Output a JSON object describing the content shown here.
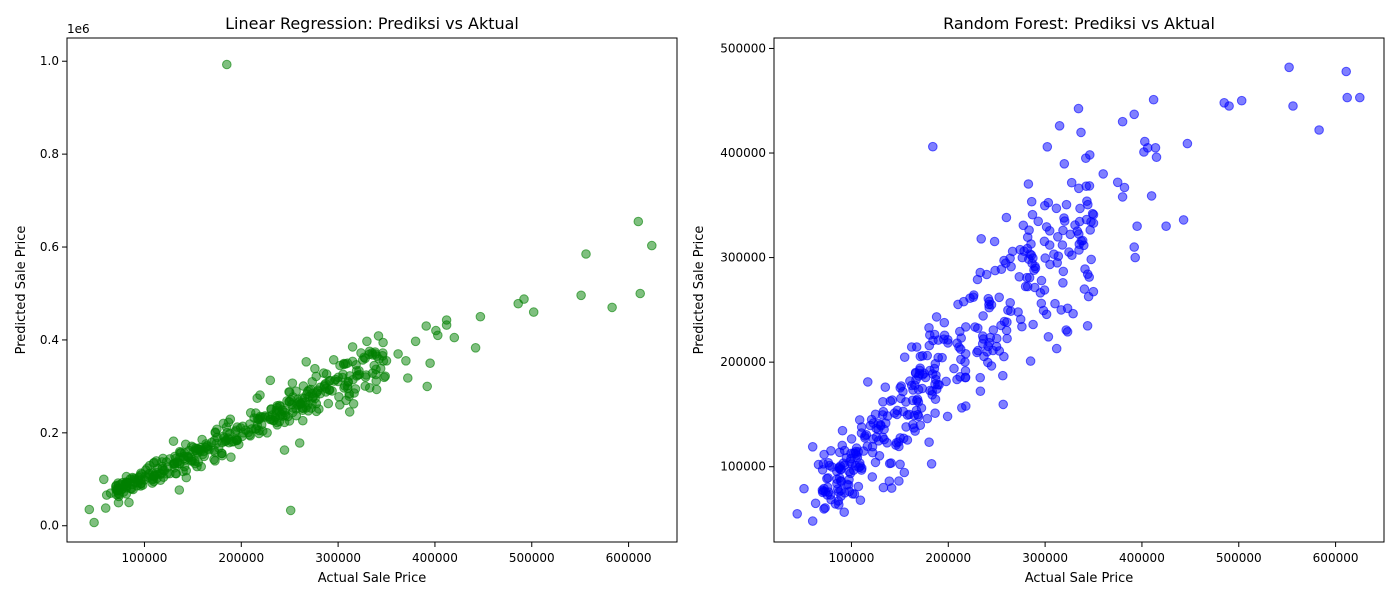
{
  "chart_data": [
    {
      "type": "scatter",
      "title": "Linear Regression: Prediksi vs Aktual",
      "xlabel": "Actual Sale Price",
      "ylabel": "Predicted Sale Price",
      "xlim": [
        20000,
        650000
      ],
      "ylim": [
        -35000,
        1050000
      ],
      "xticks": [
        100000,
        200000,
        300000,
        400000,
        500000,
        600000
      ],
      "xtick_labels": [
        "100000",
        "200000",
        "300000",
        "400000",
        "500000",
        "600000"
      ],
      "yticks": [
        0,
        200000,
        400000,
        600000,
        800000,
        1000000
      ],
      "ytick_labels": [
        "0.0",
        "0.2",
        "0.4",
        "0.6",
        "0.8",
        "1.0"
      ],
      "y_offset_label": "1e6",
      "grid": false,
      "color": "#008000",
      "alpha": 0.5,
      "x": [
        185000,
        251000,
        610000,
        624000,
        612000,
        556000,
        583000,
        551000,
        492000,
        486000,
        502000,
        447000,
        412000,
        442000,
        391000,
        395000,
        420000,
        403000,
        412000,
        401000,
        380000,
        370000,
        372000,
        362000,
        315000,
        335000,
        340000,
        350000,
        302000,
        305000,
        312000,
        267000,
        276000,
        230000,
        392000,
        250000,
        136000,
        130000,
        84000,
        60000,
        43000,
        48000,
        58000,
        61000,
        65000
      ],
      "y": [
        993000,
        33000,
        655000,
        603000,
        500000,
        585000,
        470000,
        496000,
        488000,
        478000,
        460000,
        450000,
        443000,
        383000,
        430000,
        350000,
        405000,
        410000,
        432000,
        420000,
        397000,
        355000,
        318000,
        370000,
        385000,
        372000,
        365000,
        355000,
        345000,
        326000,
        245000,
        353000,
        338000,
        313000,
        300000,
        288000,
        77000,
        182000,
        50000,
        38000,
        35000,
        7000,
        100000,
        66000,
        70000
      ],
      "x_range": [
        60000,
        360000
      ],
      "y_range": [
        60000,
        360000
      ],
      "note_cluster": true
    },
    {
      "type": "scatter",
      "title": "Random Forest: Prediksi vs Aktual",
      "xlabel": "Actual Sale Price",
      "ylabel": "Predicted Sale Price",
      "xlim": [
        20000,
        650000
      ],
      "ylim": [
        28000,
        510000
      ],
      "xticks": [
        100000,
        200000,
        300000,
        400000,
        500000,
        600000
      ],
      "xtick_labels": [
        "100000",
        "200000",
        "300000",
        "400000",
        "500000",
        "600000"
      ],
      "yticks": [
        100000,
        200000,
        300000,
        400000,
        500000
      ],
      "ytick_labels": [
        "100000",
        "200000",
        "300000",
        "400000",
        "500000"
      ],
      "grid": false,
      "color": "#0000ff",
      "alpha": 0.5,
      "x": [
        552000,
        611000,
        612000,
        625000,
        556000,
        583000,
        485000,
        490000,
        503000,
        412000,
        392000,
        380000,
        315000,
        447000,
        414000,
        406000,
        402000,
        403000,
        415000,
        342000,
        360000,
        375000,
        380000,
        350000,
        382000,
        410000,
        336000,
        350000,
        443000,
        425000,
        395000,
        392000,
        393000,
        312000,
        184000,
        234000,
        285000,
        135000,
        133000,
        60000,
        44000,
        60000,
        51000,
        63000,
        66000
      ],
      "y": [
        482000,
        478000,
        453000,
        453000,
        445000,
        422000,
        448000,
        445000,
        450000,
        451000,
        437000,
        430000,
        426000,
        409000,
        405000,
        405000,
        401000,
        411000,
        396000,
        395000,
        380000,
        372000,
        358000,
        341000,
        367000,
        359000,
        347000,
        333000,
        336000,
        330000,
        330000,
        310000,
        300000,
        213000,
        406000,
        318000,
        201000,
        176000,
        80000,
        119000,
        55000,
        48000,
        79000,
        65000,
        102000
      ]
    }
  ]
}
